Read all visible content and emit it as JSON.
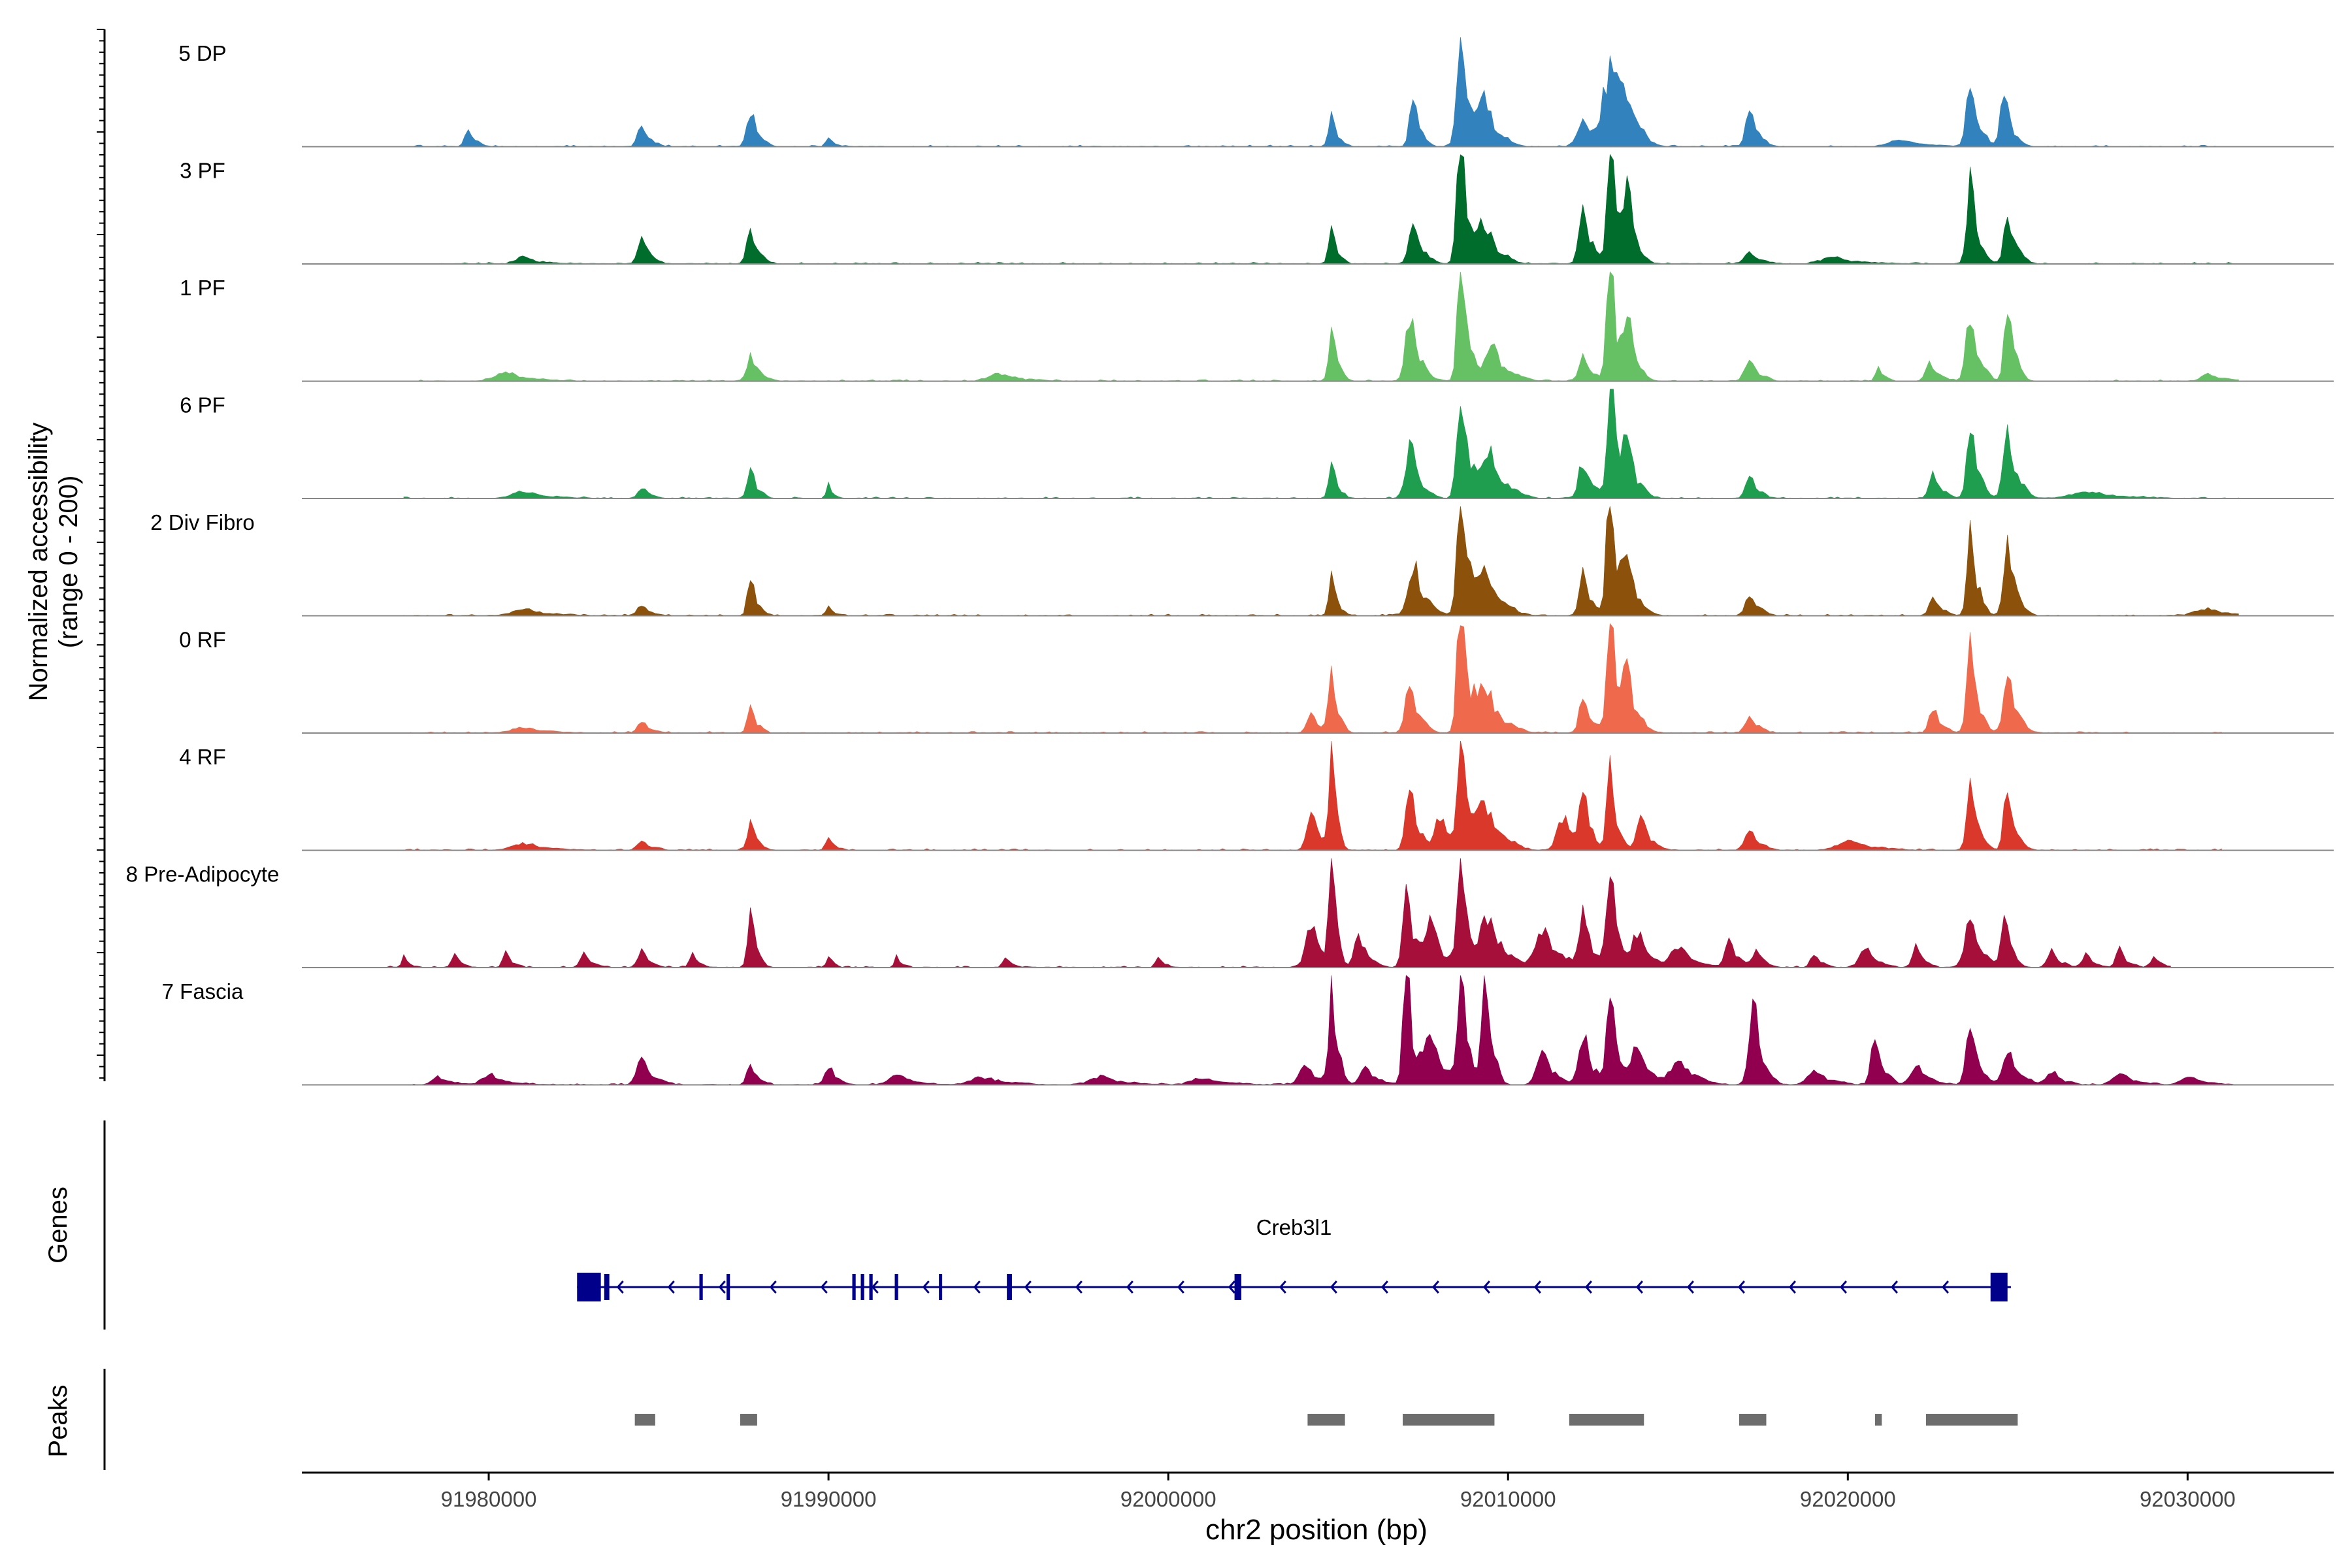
{
  "chart_data": {
    "type": "area",
    "title": "",
    "ylabel_line1": "Normalized accessibility",
    "ylabel_line2": "(range 0 - 200)",
    "xlabel": "chr2 position (bp)",
    "xlim": [
      91974500,
      92034300
    ],
    "ylim": [
      0,
      200
    ],
    "x_ticks": [
      {
        "value": 91980000,
        "label": "91980000"
      },
      {
        "value": 91990000,
        "label": "91990000"
      },
      {
        "value": 92000000,
        "label": "92000000"
      },
      {
        "value": 92010000,
        "label": "92010000"
      },
      {
        "value": 92020000,
        "label": "92020000"
      },
      {
        "value": 92030000,
        "label": "92030000"
      }
    ],
    "series": [
      {
        "name": "5 DP",
        "color": "#3182bd",
        "peaks": [
          [
            91979400,
            14,
            90
          ],
          [
            91984500,
            16,
            110
          ],
          [
            91987700,
            28,
            100
          ],
          [
            91990000,
            6,
            80
          ],
          [
            92004800,
            22,
            80
          ],
          [
            92007200,
            40,
            90
          ],
          [
            92008600,
            100,
            100
          ],
          [
            92009300,
            35,
            160
          ],
          [
            92012200,
            18,
            160
          ],
          [
            92013000,
            55,
            200
          ],
          [
            92013400,
            30,
            150
          ],
          [
            92017100,
            28,
            110
          ],
          [
            92023600,
            50,
            110
          ],
          [
            92024600,
            38,
            110
          ],
          [
            92021500,
            5,
            300
          ]
        ],
        "start": 91977500,
        "end": 92031500
      },
      {
        "name": "3 PF",
        "color": "#006d2c",
        "peaks": [
          [
            91984500,
            20,
            110
          ],
          [
            91987700,
            25,
            100
          ],
          [
            91981000,
            5,
            200
          ],
          [
            92004800,
            26,
            80
          ],
          [
            92007200,
            30,
            120
          ],
          [
            92008600,
            100,
            100
          ],
          [
            92009300,
            30,
            170
          ],
          [
            92012200,
            45,
            110
          ],
          [
            92013000,
            100,
            90
          ],
          [
            92013500,
            55,
            110
          ],
          [
            92023600,
            60,
            100
          ],
          [
            92024700,
            38,
            110
          ],
          [
            92017100,
            8,
            150
          ],
          [
            92019500,
            5,
            300
          ]
        ],
        "start": 91978500,
        "end": 92031500
      },
      {
        "name": "1 PF",
        "color": "#66c164",
        "peaks": [
          [
            91987700,
            20,
            110
          ],
          [
            91980500,
            6,
            300
          ],
          [
            91995000,
            5,
            300
          ],
          [
            92004800,
            40,
            80
          ],
          [
            92007100,
            50,
            120
          ],
          [
            92008600,
            100,
            90
          ],
          [
            92009500,
            25,
            200
          ],
          [
            92012200,
            20,
            110
          ],
          [
            92013000,
            100,
            90
          ],
          [
            92013500,
            50,
            110
          ],
          [
            92017100,
            20,
            120
          ],
          [
            92020900,
            10,
            80
          ],
          [
            92022400,
            15,
            110
          ],
          [
            92023600,
            55,
            110
          ],
          [
            92024700,
            60,
            90
          ],
          [
            92030600,
            5,
            200
          ]
        ],
        "start": 91977500,
        "end": 92031500
      },
      {
        "name": "6 PF",
        "color": "#1f9e4f",
        "peaks": [
          [
            91984500,
            8,
            110
          ],
          [
            91987700,
            22,
            90
          ],
          [
            91990000,
            10,
            60
          ],
          [
            91981000,
            5,
            300
          ],
          [
            92004800,
            28,
            80
          ],
          [
            92007100,
            40,
            130
          ],
          [
            92008600,
            90,
            100
          ],
          [
            92009400,
            35,
            200
          ],
          [
            92012200,
            28,
            120
          ],
          [
            92013000,
            100,
            90
          ],
          [
            92013500,
            45,
            120
          ],
          [
            92017100,
            18,
            110
          ],
          [
            92022500,
            18,
            110
          ],
          [
            92023600,
            60,
            100
          ],
          [
            92024700,
            52,
            120
          ],
          [
            92027000,
            5,
            400
          ]
        ],
        "start": 91977500,
        "end": 92031500
      },
      {
        "name": "2 Div Fibro",
        "color": "#8c510a",
        "peaks": [
          [
            91984500,
            8,
            110
          ],
          [
            91987700,
            30,
            80
          ],
          [
            91990000,
            6,
            80
          ],
          [
            91981000,
            5,
            300
          ],
          [
            92004800,
            28,
            80
          ],
          [
            92007200,
            38,
            150
          ],
          [
            92008600,
            100,
            100
          ],
          [
            92009300,
            35,
            200
          ],
          [
            92012200,
            30,
            110
          ],
          [
            92013000,
            100,
            100
          ],
          [
            92013500,
            40,
            130
          ],
          [
            92017100,
            18,
            110
          ],
          [
            92022500,
            15,
            110
          ],
          [
            92023600,
            70,
            90
          ],
          [
            92024700,
            55,
            110
          ],
          [
            92030500,
            5,
            300
          ]
        ],
        "start": 91977500,
        "end": 92031500
      },
      {
        "name": "0 RF",
        "color": "#ef6a4c",
        "peaks": [
          [
            91984500,
            8,
            110
          ],
          [
            91987700,
            22,
            80
          ],
          [
            91981000,
            4,
            300
          ],
          [
            92004200,
            15,
            110
          ],
          [
            92004800,
            52,
            80
          ],
          [
            92007100,
            38,
            120
          ],
          [
            92008600,
            100,
            100
          ],
          [
            92009300,
            35,
            200
          ],
          [
            92012200,
            25,
            110
          ],
          [
            92013000,
            90,
            100
          ],
          [
            92013500,
            40,
            130
          ],
          [
            92017100,
            15,
            110
          ],
          [
            92022500,
            18,
            110
          ],
          [
            92023600,
            65,
            100
          ],
          [
            92024700,
            40,
            120
          ]
        ],
        "start": 91977500,
        "end": 92031000
      },
      {
        "name": "4 RF",
        "color": "#d9382a",
        "peaks": [
          [
            91984500,
            8,
            110
          ],
          [
            91987700,
            20,
            90
          ],
          [
            91990000,
            10,
            80
          ],
          [
            91981000,
            5,
            300
          ],
          [
            92004200,
            30,
            120
          ],
          [
            92004800,
            100,
            60
          ],
          [
            92007100,
            60,
            100
          ],
          [
            92008000,
            25,
            150
          ],
          [
            92008600,
            90,
            90
          ],
          [
            92009300,
            35,
            200
          ],
          [
            92011600,
            25,
            150
          ],
          [
            92012200,
            45,
            90
          ],
          [
            92013000,
            62,
            90
          ],
          [
            92013900,
            25,
            120
          ],
          [
            92017100,
            18,
            120
          ],
          [
            92023600,
            55,
            100
          ],
          [
            92024700,
            50,
            100
          ],
          [
            92020000,
            8,
            300
          ]
        ],
        "start": 91977500,
        "end": 92031000
      },
      {
        "name": "8 Pre-Adipocyte",
        "color": "#a50f3a",
        "peaks": [
          [
            91977500,
            10,
            60
          ],
          [
            91979000,
            10,
            80
          ],
          [
            91980500,
            12,
            80
          ],
          [
            91982800,
            12,
            100
          ],
          [
            91984500,
            15,
            100
          ],
          [
            91986000,
            10,
            80
          ],
          [
            91987700,
            40,
            80
          ],
          [
            91990000,
            10,
            60
          ],
          [
            91992000,
            8,
            60
          ],
          [
            91995200,
            8,
            80
          ],
          [
            91999700,
            8,
            80
          ],
          [
            92004200,
            35,
            150
          ],
          [
            92004800,
            100,
            60
          ],
          [
            92005600,
            25,
            120
          ],
          [
            92007000,
            60,
            100
          ],
          [
            92007700,
            35,
            150
          ],
          [
            92008600,
            90,
            90
          ],
          [
            92009400,
            40,
            200
          ],
          [
            92011000,
            30,
            200
          ],
          [
            92012200,
            40,
            120
          ],
          [
            92013000,
            70,
            100
          ],
          [
            92013800,
            25,
            150
          ],
          [
            92015000,
            15,
            200
          ],
          [
            92016500,
            20,
            120
          ],
          [
            92017300,
            15,
            100
          ],
          [
            92019000,
            10,
            100
          ],
          [
            92020500,
            15,
            150
          ],
          [
            92022000,
            15,
            100
          ],
          [
            92023600,
            35,
            150
          ],
          [
            92024600,
            45,
            90
          ],
          [
            92026000,
            12,
            120
          ],
          [
            92027000,
            10,
            100
          ],
          [
            92028000,
            14,
            100
          ],
          [
            92029000,
            8,
            100
          ]
        ],
        "start": 91977000,
        "end": 92029500
      },
      {
        "name": "7 Fascia",
        "color": "#91004f",
        "peaks": [
          [
            91978500,
            6,
            150
          ],
          [
            91980000,
            8,
            200
          ],
          [
            91984500,
            18,
            150
          ],
          [
            91987700,
            15,
            100
          ],
          [
            91990000,
            15,
            100
          ],
          [
            91992000,
            8,
            200
          ],
          [
            91994500,
            6,
            300
          ],
          [
            91998000,
            6,
            300
          ],
          [
            92001000,
            5,
            300
          ],
          [
            92004000,
            15,
            150
          ],
          [
            92004800,
            75,
            80
          ],
          [
            92005800,
            12,
            150
          ],
          [
            92007000,
            95,
            90
          ],
          [
            92007700,
            40,
            150
          ],
          [
            92008600,
            100,
            90
          ],
          [
            92009300,
            90,
            90
          ],
          [
            92011000,
            25,
            150
          ],
          [
            92012200,
            40,
            120
          ],
          [
            92013000,
            72,
            100
          ],
          [
            92013800,
            30,
            150
          ],
          [
            92015000,
            20,
            200
          ],
          [
            92017200,
            60,
            120
          ],
          [
            92019000,
            10,
            200
          ],
          [
            92020800,
            35,
            110
          ],
          [
            92022000,
            15,
            150
          ],
          [
            92023600,
            45,
            110
          ],
          [
            92024700,
            25,
            150
          ],
          [
            92026000,
            10,
            150
          ],
          [
            92028000,
            8,
            200
          ],
          [
            92030000,
            6,
            200
          ]
        ],
        "start": 91977500,
        "end": 92031500
      }
    ],
    "genes_label": "Genes",
    "peaks_label": "Peaks",
    "gene": {
      "name": "Creb3l1",
      "start": 91982600,
      "end": 92024800,
      "strand": "-",
      "color": "#00008b",
      "exons": [
        [
          91982600,
          91983300
        ],
        [
          91983400,
          91983550
        ],
        [
          91986200,
          91986300
        ],
        [
          91987000,
          91987100
        ],
        [
          91990700,
          91990800
        ],
        [
          91990950,
          91991050
        ],
        [
          91991200,
          91991300
        ],
        [
          91991950,
          91992050
        ],
        [
          91993250,
          91993300
        ],
        [
          91995250,
          91995400
        ],
        [
          92001950,
          92002150
        ],
        [
          92024200,
          92024700
        ]
      ]
    },
    "peaks_track": {
      "color": "#6d6d6d",
      "regions": [
        [
          91984300,
          91984900
        ],
        [
          91987400,
          91987900
        ],
        [
          92004100,
          92005200
        ],
        [
          92006900,
          92009600
        ],
        [
          92011800,
          92014000
        ],
        [
          92016800,
          92017600
        ],
        [
          92020800,
          92021000
        ],
        [
          92022300,
          92025000
        ]
      ]
    }
  }
}
